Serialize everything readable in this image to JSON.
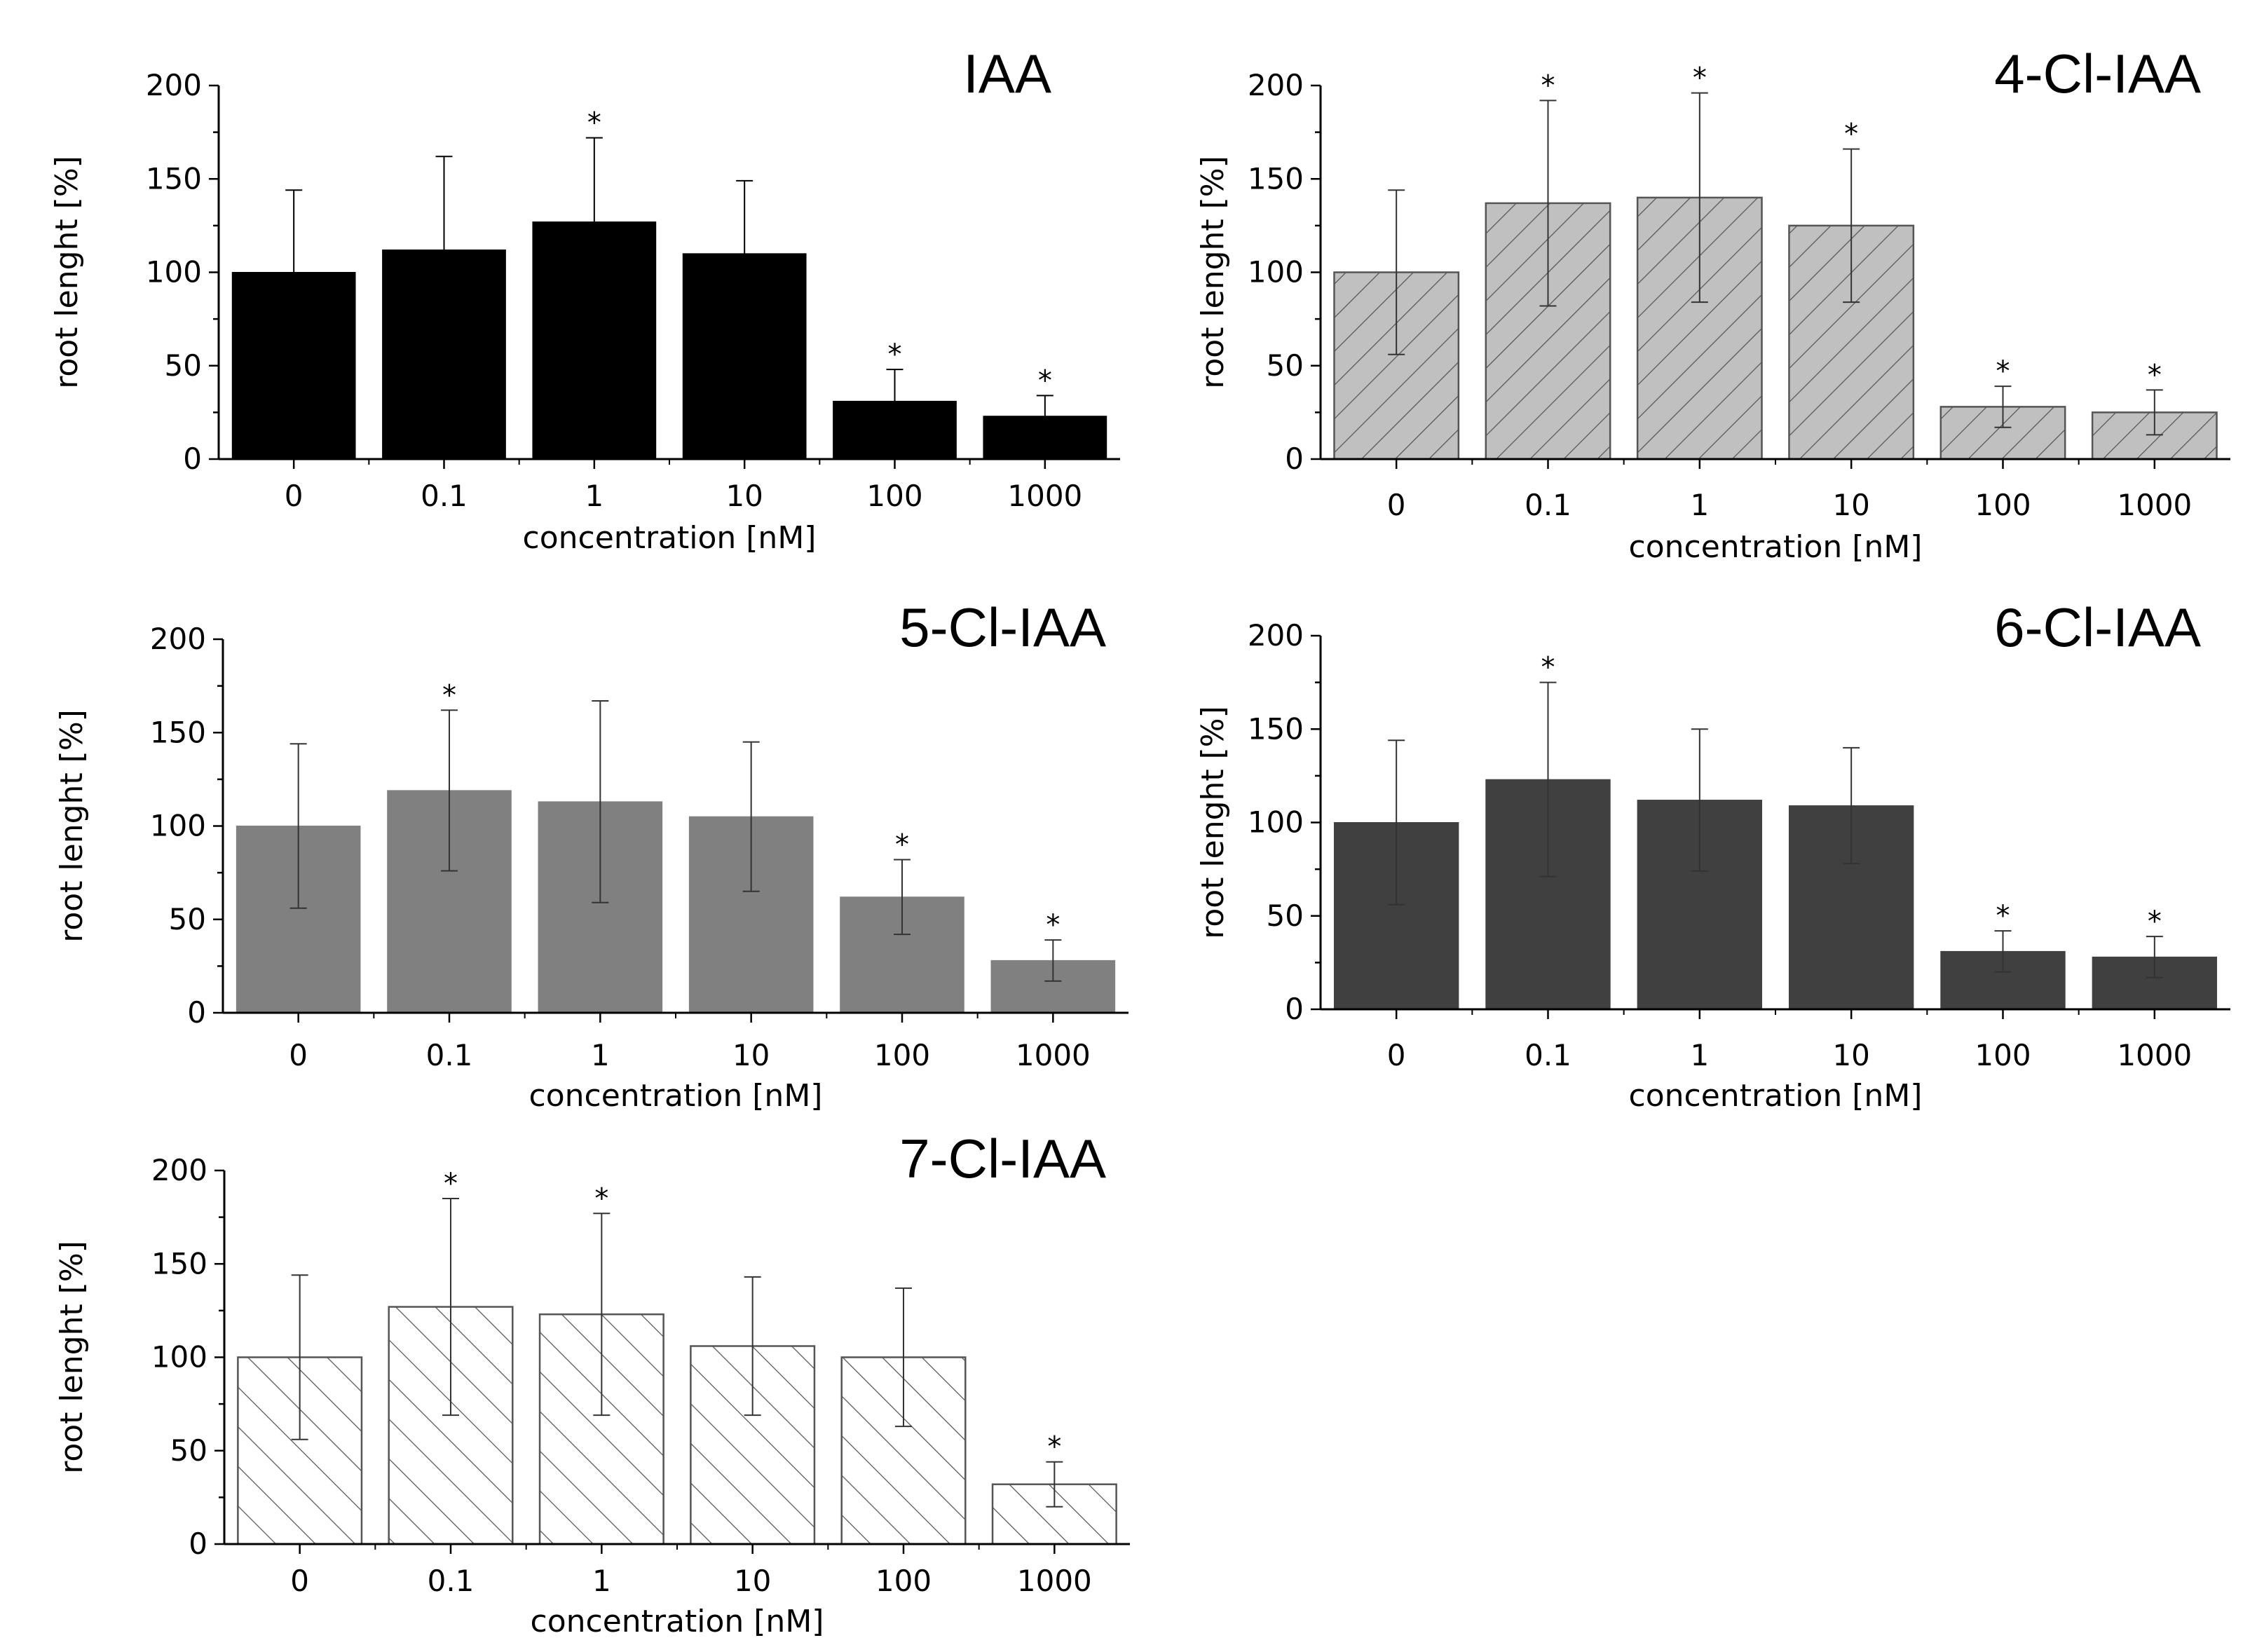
{
  "chart_data": [
    {
      "type": "bar",
      "title": "IAA",
      "xlabel": "concentration [nM]",
      "ylabel": "root lenght [%]",
      "ylim": [
        0,
        200
      ],
      "yticks": [
        "0",
        "50",
        "100",
        "150",
        "200"
      ],
      "categories": [
        "0",
        "0.1",
        "1",
        "10",
        "100",
        "1000"
      ],
      "values": [
        100,
        112,
        127,
        110,
        31,
        23
      ],
      "errors": [
        44,
        50,
        45,
        39,
        17,
        11
      ],
      "significant": [
        false,
        false,
        true,
        false,
        true,
        true
      ],
      "star_label": "*",
      "fill": "#000000",
      "pattern": "none"
    },
    {
      "type": "bar",
      "title": "4-Cl-IAA",
      "xlabel": "concentration [nM]",
      "ylabel": "root lenght [%]",
      "ylim": [
        0,
        200
      ],
      "yticks": [
        "0",
        "50",
        "100",
        "150",
        "200"
      ],
      "categories": [
        "0",
        "0.1",
        "1",
        "10",
        "100",
        "1000"
      ],
      "values": [
        100,
        137,
        140,
        125,
        28,
        25
      ],
      "errors": [
        44,
        55,
        56,
        41,
        11,
        12
      ],
      "significant": [
        false,
        true,
        true,
        true,
        true,
        true
      ],
      "star_label": "*",
      "fill": "#c0c0c0",
      "pattern": "forward-diagonal"
    },
    {
      "type": "bar",
      "title": "5-Cl-IAA",
      "xlabel": "concentration [nM]",
      "ylabel": "root lenght [%]",
      "ylim": [
        0,
        200
      ],
      "yticks": [
        "0",
        "50",
        "100",
        "150",
        "200"
      ],
      "categories": [
        "0",
        "0.1",
        "1",
        "10",
        "100",
        "1000"
      ],
      "values": [
        100,
        119,
        113,
        105,
        62,
        28
      ],
      "errors": [
        44,
        43,
        54,
        40,
        20,
        11
      ],
      "significant": [
        false,
        true,
        false,
        false,
        true,
        true
      ],
      "star_label": "*",
      "fill": "#808080",
      "pattern": "none"
    },
    {
      "type": "bar",
      "title": "6-Cl-IAA",
      "xlabel": "concentration [nM]",
      "ylabel": "root lenght [%]",
      "ylim": [
        0,
        200
      ],
      "yticks": [
        "0",
        "50",
        "100",
        "150",
        "200"
      ],
      "categories": [
        "0",
        "0.1",
        "1",
        "10",
        "100",
        "1000"
      ],
      "values": [
        100,
        123,
        112,
        109,
        31,
        28
      ],
      "errors": [
        44,
        52,
        38,
        31,
        11,
        11
      ],
      "significant": [
        false,
        true,
        false,
        false,
        true,
        true
      ],
      "star_label": "*",
      "fill": "#404040",
      "pattern": "none"
    },
    {
      "type": "bar",
      "title": "7-Cl-IAA",
      "xlabel": "concentration [nM]",
      "ylabel": "root lenght [%]",
      "ylim": [
        0,
        200
      ],
      "yticks": [
        "0",
        "50",
        "100",
        "150",
        "200"
      ],
      "categories": [
        "0",
        "0.1",
        "1",
        "10",
        "100",
        "1000"
      ],
      "values": [
        100,
        127,
        123,
        106,
        100,
        32
      ],
      "errors": [
        44,
        58,
        54,
        37,
        37,
        12
      ],
      "significant": [
        false,
        true,
        true,
        false,
        false,
        true
      ],
      "star_label": "*",
      "fill": "#ffffff",
      "pattern": "back-diagonal"
    }
  ]
}
